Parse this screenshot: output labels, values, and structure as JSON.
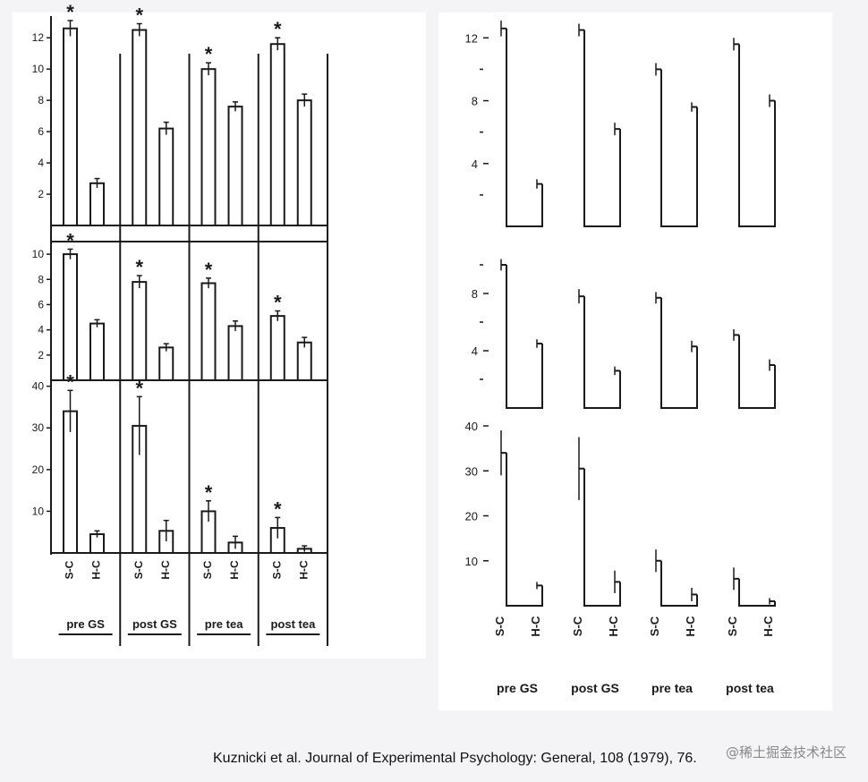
{
  "caption": "Kuznicki et al. Journal of Experimental Psychology: General, 108 (1979), 76.",
  "watermark": "@稀土掘金技术社区",
  "colors": {
    "paper": "#ffffff",
    "ink": "#1a1a1a",
    "background": "#f4f4f6"
  },
  "chart_data": [
    {
      "type": "bar",
      "style": "bar chart with error bars",
      "group_labels": [
        "pre GS",
        "post GS",
        "pre tea",
        "post tea"
      ],
      "bar_labels": [
        "S-C",
        "H-C"
      ],
      "rows": [
        {
          "yticks": [
            2,
            4,
            6,
            8,
            10,
            12
          ],
          "ylim": [
            0,
            13.5
          ],
          "series": [
            {
              "name": "S-C",
              "values": [
                12.6,
                12.5,
                10.0,
                11.6
              ],
              "err": [
                0.5,
                0.4,
                0.4,
                0.4
              ],
              "star": [
                true,
                true,
                true,
                true
              ]
            },
            {
              "name": "H-C",
              "values": [
                2.7,
                6.2,
                7.6,
                8.0
              ],
              "err": [
                0.3,
                0.4,
                0.3,
                0.4
              ],
              "star": [
                false,
                false,
                false,
                false
              ]
            }
          ]
        },
        {
          "yticks": [
            2,
            4,
            6,
            8,
            10
          ],
          "ylim": [
            0,
            11
          ],
          "series": [
            {
              "name": "S-C",
              "values": [
                10.0,
                7.8,
                7.7,
                5.1
              ],
              "err": [
                0.4,
                0.5,
                0.4,
                0.4
              ],
              "star": [
                true,
                true,
                true,
                true
              ]
            },
            {
              "name": "H-C",
              "values": [
                4.5,
                2.6,
                4.3,
                3.0
              ],
              "err": [
                0.3,
                0.3,
                0.4,
                0.4
              ],
              "star": [
                false,
                false,
                false,
                false
              ]
            }
          ]
        },
        {
          "yticks": [
            10,
            20,
            30,
            40
          ],
          "ylim": [
            0,
            41
          ],
          "series": [
            {
              "name": "S-C",
              "values": [
                34,
                30.5,
                10,
                6
              ],
              "err": [
                5,
                7,
                2.5,
                2.5
              ],
              "star": [
                true,
                true,
                true,
                true
              ]
            },
            {
              "name": "H-C",
              "values": [
                4.5,
                5.3,
                2.5,
                1.0
              ],
              "err": [
                0.8,
                2.5,
                1.5,
                0.7
              ],
              "star": [
                false,
                false,
                false,
                false
              ]
            }
          ]
        }
      ]
    },
    {
      "type": "bar",
      "style": "outline step plot with error ticks",
      "group_labels": [
        "pre GS",
        "post GS",
        "pre tea",
        "post tea"
      ],
      "bar_labels": [
        "S-C",
        "H-C"
      ],
      "rows": [
        {
          "yticks": [
            4,
            8,
            12
          ],
          "minor_ticks": [
            2,
            6,
            10
          ],
          "ylim": [
            0,
            13.5
          ],
          "series": [
            {
              "name": "S-C",
              "values": [
                12.6,
                12.5,
                10.0,
                11.6
              ],
              "err": [
                0.5,
                0.4,
                0.4,
                0.4
              ]
            },
            {
              "name": "H-C",
              "values": [
                2.7,
                6.2,
                7.6,
                8.0
              ],
              "err": [
                0.3,
                0.4,
                0.3,
                0.4
              ]
            }
          ]
        },
        {
          "yticks": [
            4,
            8
          ],
          "minor_ticks": [
            2,
            6,
            10
          ],
          "ylim": [
            0,
            10.5
          ],
          "series": [
            {
              "name": "S-C",
              "values": [
                10.0,
                7.8,
                7.7,
                5.1
              ],
              "err": [
                0.4,
                0.5,
                0.4,
                0.4
              ]
            },
            {
              "name": "H-C",
              "values": [
                4.5,
                2.6,
                4.3,
                3.0
              ],
              "err": [
                0.3,
                0.3,
                0.4,
                0.4
              ]
            }
          ]
        },
        {
          "yticks": [
            10,
            20,
            30,
            40
          ],
          "minor_ticks": [],
          "ylim": [
            0,
            40
          ],
          "series": [
            {
              "name": "S-C",
              "values": [
                34,
                30.5,
                10,
                6
              ],
              "err": [
                5,
                7,
                2.5,
                2.5
              ]
            },
            {
              "name": "H-C",
              "values": [
                4.5,
                5.3,
                2.5,
                1.0
              ],
              "err": [
                0.8,
                2.5,
                1.5,
                0.7
              ]
            }
          ]
        }
      ]
    }
  ]
}
